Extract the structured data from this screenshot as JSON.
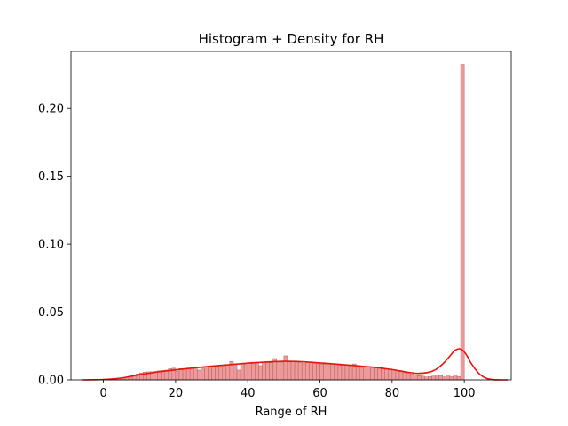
{
  "chart_data": {
    "type": "bar",
    "title": "Histogram + Density for RH",
    "xlabel": "Range of RH",
    "ylabel": "",
    "xlim": [
      -9,
      113
    ],
    "ylim": [
      0,
      0.242
    ],
    "xticks": [
      0,
      20,
      40,
      60,
      80,
      100
    ],
    "yticks": [
      0.0,
      0.05,
      0.1,
      0.15,
      0.2
    ],
    "ytick_format": "2dp",
    "grid": false,
    "colors": {
      "bar_fill": "#ee9a9a",
      "bar_edge": "#b46060",
      "density_line": "#e8140a"
    },
    "histogram": {
      "bin_start": 1,
      "bin_width": 1,
      "values": [
        0.0001,
        0.0003,
        0.0006,
        0.001,
        0.0015,
        0.002,
        0.0028,
        0.0036,
        0.0044,
        0.0051,
        0.0057,
        0.0059,
        0.006,
        0.0063,
        0.0067,
        0.0069,
        0.0072,
        0.0082,
        0.0086,
        0.0065,
        0.0083,
        0.0082,
        0.0084,
        0.0087,
        0.009,
        0.0072,
        0.0093,
        0.0096,
        0.0098,
        0.0103,
        0.0101,
        0.0106,
        0.0109,
        0.0112,
        0.0136,
        0.0114,
        0.0072,
        0.0117,
        0.0112,
        0.0121,
        0.0118,
        0.0125,
        0.0105,
        0.0128,
        0.0128,
        0.0126,
        0.0157,
        0.0127,
        0.0131,
        0.0177,
        0.0132,
        0.0138,
        0.0127,
        0.0131,
        0.0124,
        0.0128,
        0.0126,
        0.0122,
        0.0121,
        0.0116,
        0.0116,
        0.0118,
        0.0116,
        0.0113,
        0.0106,
        0.0111,
        0.0106,
        0.0104,
        0.0117,
        0.0096,
        0.0098,
        0.0099,
        0.0097,
        0.0095,
        0.0092,
        0.0087,
        0.0081,
        0.0081,
        0.0081,
        0.0076,
        0.0066,
        0.006,
        0.0055,
        0.005,
        0.0043,
        0.0036,
        0.0031,
        0.0027,
        0.0022,
        0.0025,
        0.0028,
        0.0035,
        0.0032,
        0.0022,
        0.0037,
        0.0023,
        0.0036,
        0.0025,
        0.2325
      ]
    },
    "density": {
      "x": [
        -6,
        -2,
        0,
        2,
        5,
        8,
        10,
        15,
        20,
        25,
        30,
        35,
        40,
        45,
        50,
        55,
        60,
        65,
        70,
        75,
        80,
        84,
        87,
        90,
        92,
        94,
        96,
        97,
        98,
        99,
        100,
        101,
        102,
        104,
        106,
        108,
        110,
        112
      ],
      "y": [
        0,
        0.0001,
        0.0003,
        0.0006,
        0.0014,
        0.0028,
        0.0038,
        0.0058,
        0.0074,
        0.0088,
        0.0101,
        0.0112,
        0.0123,
        0.0131,
        0.0137,
        0.0134,
        0.0125,
        0.0115,
        0.0104,
        0.0093,
        0.0076,
        0.0058,
        0.0048,
        0.0055,
        0.0075,
        0.0116,
        0.0175,
        0.0208,
        0.0226,
        0.0227,
        0.0206,
        0.0166,
        0.0118,
        0.0049,
        0.0013,
        0.0002,
        0,
        0
      ]
    }
  }
}
